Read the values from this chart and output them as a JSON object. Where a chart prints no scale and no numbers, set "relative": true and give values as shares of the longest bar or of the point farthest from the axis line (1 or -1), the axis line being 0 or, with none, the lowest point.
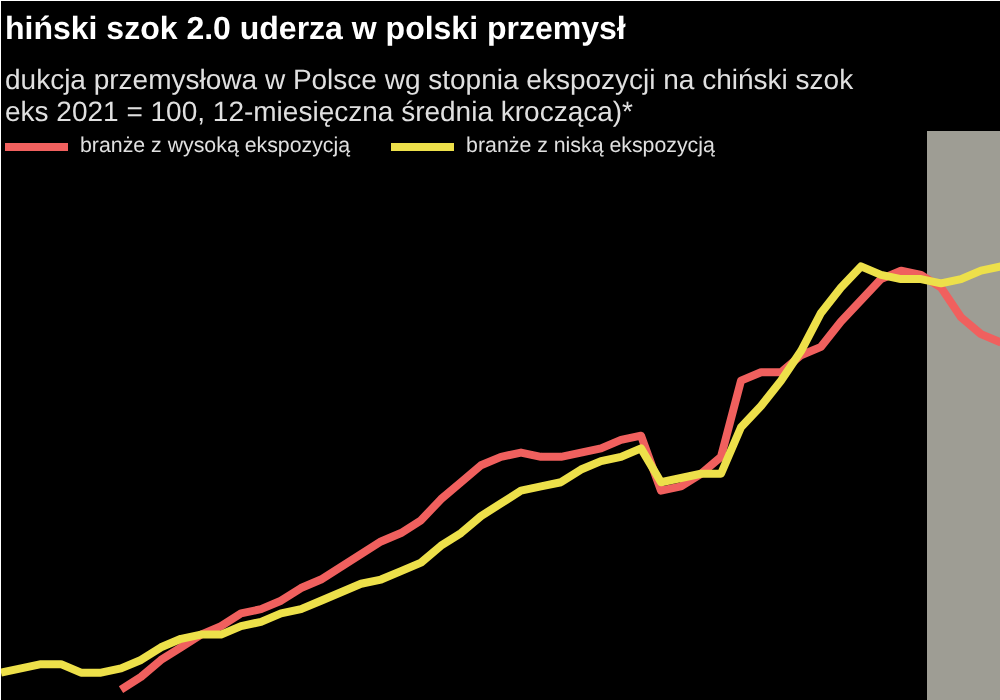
{
  "chart_data": {
    "type": "line",
    "title": "hiński szok 2.0 uderza w polski przemysł",
    "subtitle": "dukcja przemysłowa w Polsce wg stopnia ekspozycji na chiński szok\neks 2021 = 100, 12-miesięczna średnia krocząca)*",
    "relative": true,
    "categories": [
      null,
      null,
      null,
      null,
      null,
      null,
      null,
      null,
      null,
      null,
      null,
      null,
      null,
      null,
      null,
      null,
      null,
      null,
      null,
      null,
      null,
      null,
      null,
      null,
      null,
      null,
      null,
      null,
      null,
      null,
      null,
      null,
      null,
      null,
      null,
      null,
      null,
      null,
      null,
      null,
      null,
      null,
      null,
      null,
      null,
      null,
      null,
      null,
      null,
      null,
      null
    ],
    "series": [
      {
        "name": "branże z wysoką ekspozycją",
        "color": "#f0605e",
        "values": [
          null,
          null,
          null,
          null,
          null,
          null,
          0,
          0.03,
          0.07,
          0.1,
          0.13,
          0.15,
          0.18,
          0.19,
          0.21,
          0.24,
          0.26,
          0.29,
          0.32,
          0.35,
          0.37,
          0.4,
          0.45,
          0.49,
          0.53,
          0.55,
          0.56,
          0.55,
          0.55,
          0.56,
          0.57,
          0.59,
          0.6,
          0.47,
          0.48,
          0.51,
          0.55,
          0.73,
          0.75,
          0.75,
          0.79,
          0.81,
          0.87,
          0.92,
          0.97,
          0.99,
          0.98,
          0.95,
          0.88,
          0.84,
          0.82
        ]
      },
      {
        "name": "branże z niską ekspozycją",
        "color": "#ede04a",
        "values": [
          0.04,
          0.05,
          0.06,
          0.06,
          0.04,
          0.04,
          0.05,
          0.07,
          0.1,
          0.12,
          0.13,
          0.13,
          0.15,
          0.16,
          0.18,
          0.19,
          0.21,
          0.23,
          0.25,
          0.26,
          0.28,
          0.3,
          0.34,
          0.37,
          0.41,
          0.44,
          0.47,
          0.48,
          0.49,
          0.52,
          0.54,
          0.55,
          0.57,
          0.49,
          0.5,
          0.51,
          0.51,
          0.62,
          0.67,
          0.73,
          0.8,
          0.89,
          0.95,
          1.0,
          0.98,
          0.97,
          0.97,
          0.96,
          0.97,
          0.99,
          1.0
        ]
      }
    ],
    "legend": "top left",
    "line_style": "solid"
  }
}
